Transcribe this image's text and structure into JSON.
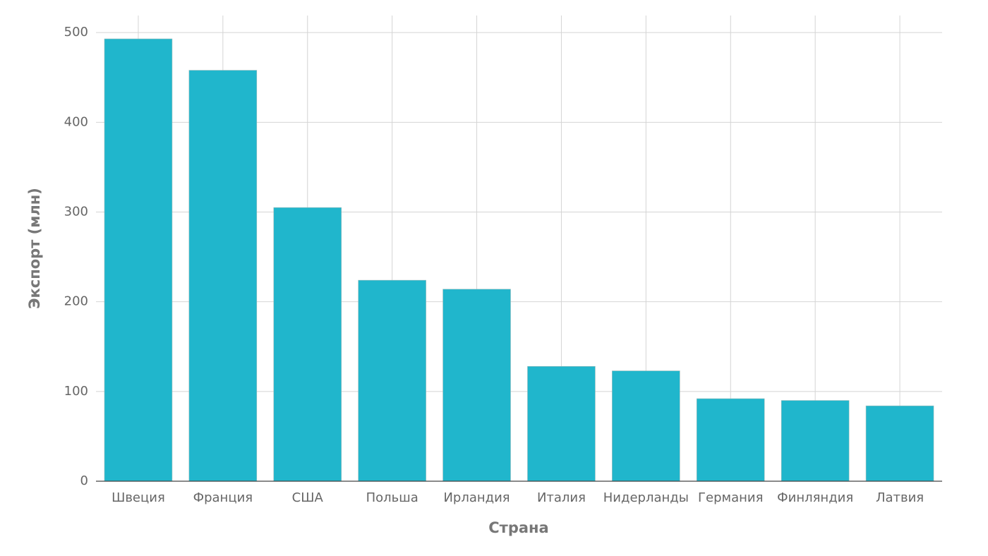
{
  "chart_data": {
    "type": "bar",
    "x_label": "Страна",
    "y_label": "Экспорт (млн)",
    "categories": [
      "Швеция",
      "Франция",
      "США",
      "Польша",
      "Ирландия",
      "Италия",
      "Нидерланды",
      "Германия",
      "Финляндия",
      "Латвия"
    ],
    "values": [
      493,
      458,
      305,
      224,
      214,
      128,
      123,
      92,
      90,
      84
    ],
    "color": "#20b6cc",
    "ylim": [
      0,
      519
    ],
    "yticks": [
      0,
      100,
      200,
      300,
      400,
      500
    ],
    "grid": true
  }
}
